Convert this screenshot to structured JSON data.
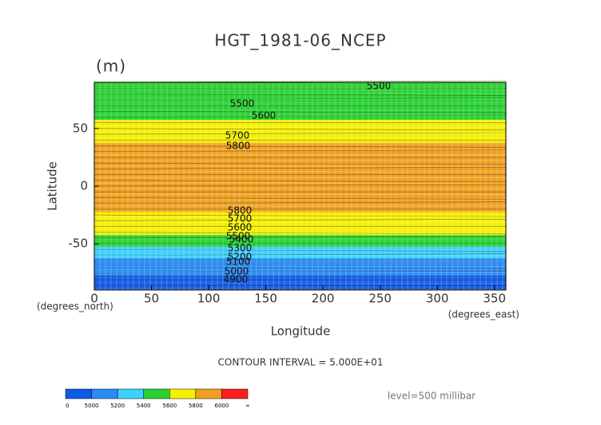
{
  "chart_data": {
    "type": "zonal-contour",
    "title": "HGT_1981-06_NCEP",
    "units": "(m)",
    "x_label": "Longitude",
    "y_label": "Latitude",
    "x_unit": "(degrees_east)",
    "y_unit": "(degrees_north)",
    "contour_interval": "CONTOUR INTERVAL = 5.000E+01",
    "level": "level=500 millibar",
    "xlim": [
      0,
      360
    ],
    "xticks": [
      0,
      50,
      100,
      150,
      200,
      250,
      300,
      350
    ],
    "ylim": [
      -90,
      90
    ],
    "yticks": [
      -50,
      0,
      50
    ],
    "lat": [
      90,
      85,
      80,
      75,
      70,
      65,
      60,
      55,
      50,
      45,
      40,
      35,
      30,
      25,
      20,
      15,
      10,
      5,
      0,
      -5,
      -10,
      -15,
      -20,
      -25,
      -30,
      -35,
      -40,
      -45,
      -50,
      -55,
      -60,
      -65,
      -70,
      -75,
      -80,
      -85,
      -90
    ],
    "values": [
      5420,
      5450,
      5480,
      5520,
      5550,
      5570,
      5590,
      5610,
      5640,
      5700,
      5790,
      5840,
      5860,
      5870,
      5880,
      5880,
      5880,
      5880,
      5880,
      5880,
      5870,
      5860,
      5830,
      5790,
      5740,
      5680,
      5600,
      5500,
      5400,
      5300,
      5200,
      5100,
      5050,
      5000,
      4980,
      4960,
      4960
    ],
    "contour_labels": [
      5500,
      5500,
      5600,
      5700,
      5800,
      5800,
      5700,
      5600,
      5500,
      5400,
      5300,
      5200,
      5100,
      5000,
      4900
    ],
    "colorbar": {
      "labels": [
        "0",
        "5000",
        "5200",
        "5400",
        "5600",
        "5800",
        "6000",
        "∞"
      ],
      "colors": [
        "#0f5ae6",
        "#2a8cf5",
        "#3cd2ff",
        "#28d232",
        "#f5f000",
        "#f0a01e",
        "#ff1e1e"
      ]
    },
    "grid": true
  }
}
